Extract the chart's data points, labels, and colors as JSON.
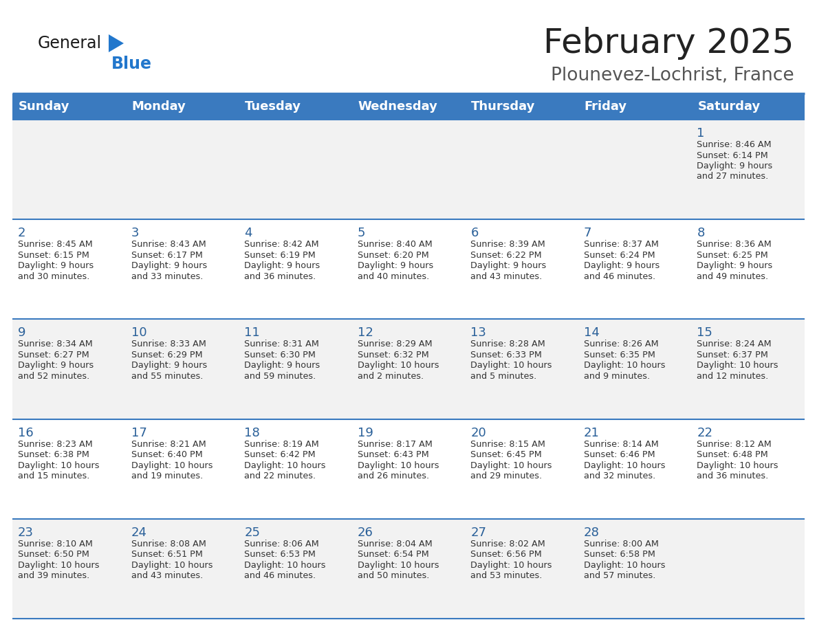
{
  "title": "February 2025",
  "subtitle": "Plounevez-Lochrist, France",
  "days_of_week": [
    "Sunday",
    "Monday",
    "Tuesday",
    "Wednesday",
    "Thursday",
    "Friday",
    "Saturday"
  ],
  "header_bg": "#3a7abf",
  "header_text": "#ffffff",
  "row_bg_even": "#f2f2f2",
  "row_bg_odd": "#ffffff",
  "cell_text_color": "#333333",
  "day_num_color": "#2a6099",
  "border_color": "#3a7abf",
  "title_color": "#222222",
  "subtitle_color": "#555555",
  "bg_color": "#ffffff",
  "logo_general_color": "#1a1a1a",
  "logo_blue_color": "#2277cc",
  "calendar_data": [
    [
      null,
      null,
      null,
      null,
      null,
      null,
      {
        "day": 1,
        "sunrise": "8:46 AM",
        "sunset": "6:14 PM",
        "daylight": "9 hours and 27 minutes"
      }
    ],
    [
      {
        "day": 2,
        "sunrise": "8:45 AM",
        "sunset": "6:15 PM",
        "daylight": "9 hours and 30 minutes"
      },
      {
        "day": 3,
        "sunrise": "8:43 AM",
        "sunset": "6:17 PM",
        "daylight": "9 hours and 33 minutes"
      },
      {
        "day": 4,
        "sunrise": "8:42 AM",
        "sunset": "6:19 PM",
        "daylight": "9 hours and 36 minutes"
      },
      {
        "day": 5,
        "sunrise": "8:40 AM",
        "sunset": "6:20 PM",
        "daylight": "9 hours and 40 minutes"
      },
      {
        "day": 6,
        "sunrise": "8:39 AM",
        "sunset": "6:22 PM",
        "daylight": "9 hours and 43 minutes"
      },
      {
        "day": 7,
        "sunrise": "8:37 AM",
        "sunset": "6:24 PM",
        "daylight": "9 hours and 46 minutes"
      },
      {
        "day": 8,
        "sunrise": "8:36 AM",
        "sunset": "6:25 PM",
        "daylight": "9 hours and 49 minutes"
      }
    ],
    [
      {
        "day": 9,
        "sunrise": "8:34 AM",
        "sunset": "6:27 PM",
        "daylight": "9 hours and 52 minutes"
      },
      {
        "day": 10,
        "sunrise": "8:33 AM",
        "sunset": "6:29 PM",
        "daylight": "9 hours and 55 minutes"
      },
      {
        "day": 11,
        "sunrise": "8:31 AM",
        "sunset": "6:30 PM",
        "daylight": "9 hours and 59 minutes"
      },
      {
        "day": 12,
        "sunrise": "8:29 AM",
        "sunset": "6:32 PM",
        "daylight": "10 hours and 2 minutes"
      },
      {
        "day": 13,
        "sunrise": "8:28 AM",
        "sunset": "6:33 PM",
        "daylight": "10 hours and 5 minutes"
      },
      {
        "day": 14,
        "sunrise": "8:26 AM",
        "sunset": "6:35 PM",
        "daylight": "10 hours and 9 minutes"
      },
      {
        "day": 15,
        "sunrise": "8:24 AM",
        "sunset": "6:37 PM",
        "daylight": "10 hours and 12 minutes"
      }
    ],
    [
      {
        "day": 16,
        "sunrise": "8:23 AM",
        "sunset": "6:38 PM",
        "daylight": "10 hours and 15 minutes"
      },
      {
        "day": 17,
        "sunrise": "8:21 AM",
        "sunset": "6:40 PM",
        "daylight": "10 hours and 19 minutes"
      },
      {
        "day": 18,
        "sunrise": "8:19 AM",
        "sunset": "6:42 PM",
        "daylight": "10 hours and 22 minutes"
      },
      {
        "day": 19,
        "sunrise": "8:17 AM",
        "sunset": "6:43 PM",
        "daylight": "10 hours and 26 minutes"
      },
      {
        "day": 20,
        "sunrise": "8:15 AM",
        "sunset": "6:45 PM",
        "daylight": "10 hours and 29 minutes"
      },
      {
        "day": 21,
        "sunrise": "8:14 AM",
        "sunset": "6:46 PM",
        "daylight": "10 hours and 32 minutes"
      },
      {
        "day": 22,
        "sunrise": "8:12 AM",
        "sunset": "6:48 PM",
        "daylight": "10 hours and 36 minutes"
      }
    ],
    [
      {
        "day": 23,
        "sunrise": "8:10 AM",
        "sunset": "6:50 PM",
        "daylight": "10 hours and 39 minutes"
      },
      {
        "day": 24,
        "sunrise": "8:08 AM",
        "sunset": "6:51 PM",
        "daylight": "10 hours and 43 minutes"
      },
      {
        "day": 25,
        "sunrise": "8:06 AM",
        "sunset": "6:53 PM",
        "daylight": "10 hours and 46 minutes"
      },
      {
        "day": 26,
        "sunrise": "8:04 AM",
        "sunset": "6:54 PM",
        "daylight": "10 hours and 50 minutes"
      },
      {
        "day": 27,
        "sunrise": "8:02 AM",
        "sunset": "6:56 PM",
        "daylight": "10 hours and 53 minutes"
      },
      {
        "day": 28,
        "sunrise": "8:00 AM",
        "sunset": "6:58 PM",
        "daylight": "10 hours and 57 minutes"
      },
      null
    ]
  ]
}
